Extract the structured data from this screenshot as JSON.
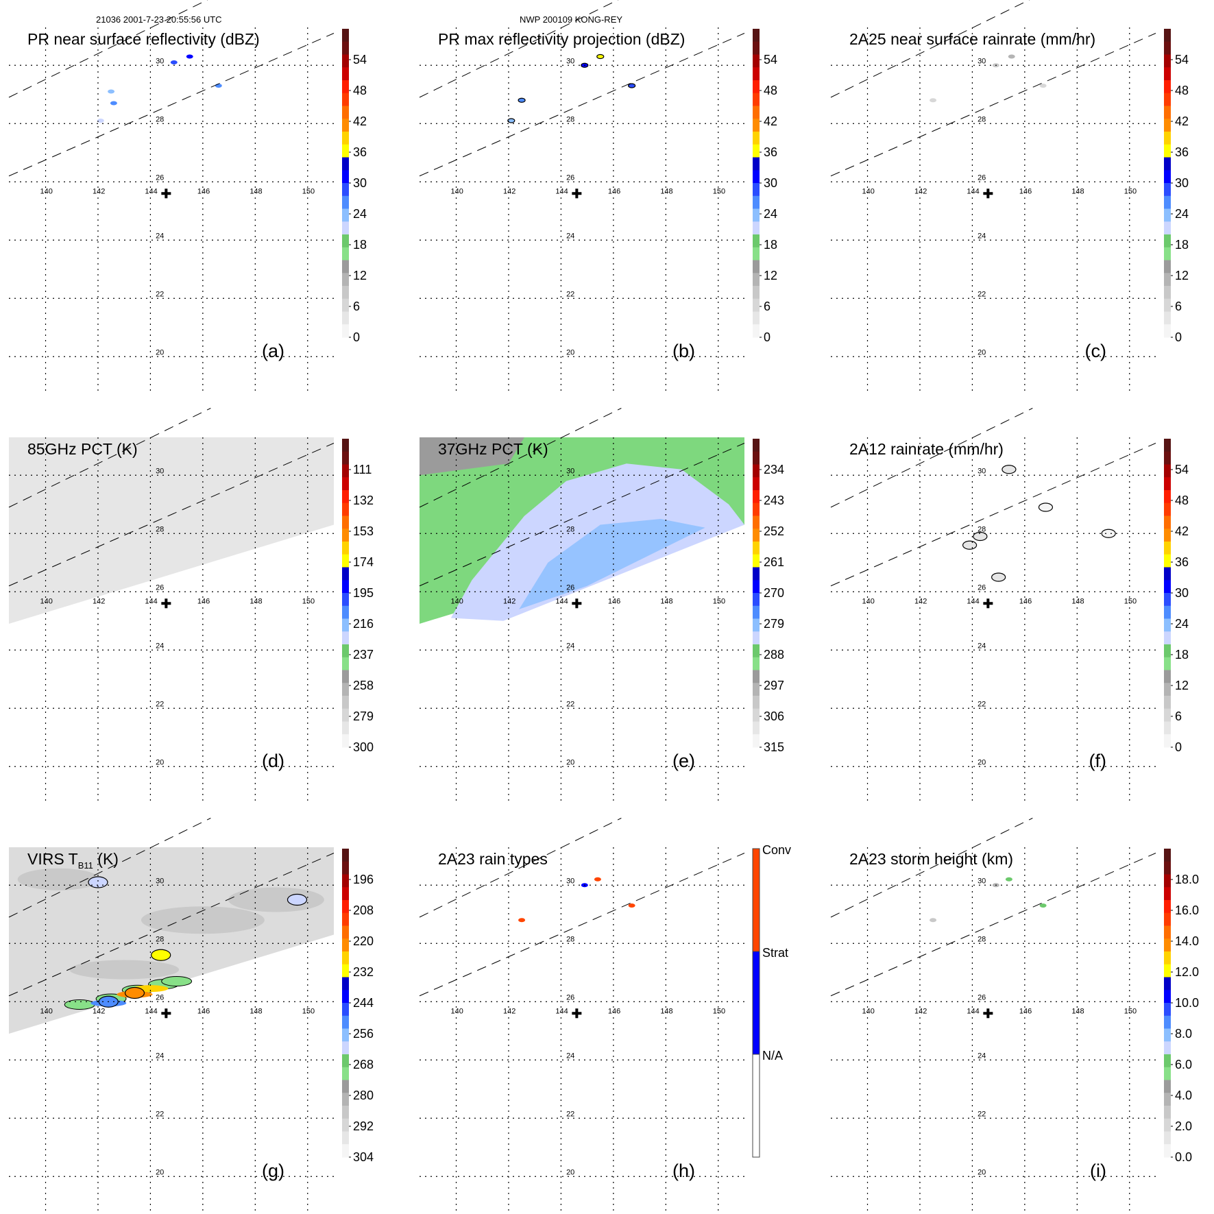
{
  "header": {
    "left": "21036 2001-7-23 20:55:56 UTC",
    "center": "NWP 200109 KONG-REY"
  },
  "map": {
    "lon_ticks": [
      "140",
      "142",
      "144",
      "146",
      "148",
      "150"
    ],
    "lat_ticks": [
      "30",
      "28",
      "26",
      "24",
      "22",
      "20"
    ],
    "lon_range": [
      138.6,
      151.0
    ],
    "lat_range": [
      19.3,
      31.3
    ],
    "storm_center": {
      "lon": 144.6,
      "lat": 25.6,
      "symbol": "+"
    }
  },
  "colors": {
    "scale": [
      "#f5f5f5",
      "#e6e6e6",
      "#d7d7d7",
      "#c8c8c8",
      "#b4b4b4",
      "#9b9b9b",
      "#88e088",
      "#6cc96c",
      "#ccd6ff",
      "#8cbfff",
      "#4d8cff",
      "#2b4dff",
      "#0000ff",
      "#0000c8",
      "#ffff00",
      "#ffd200",
      "#ff8c00",
      "#ff6e00",
      "#ff3c00",
      "#ff1e00",
      "#cc0000",
      "#a30000",
      "#6b1010",
      "#561414"
    ],
    "conv": "#ff4500",
    "strat": "#0000ff",
    "na": "#ffffff",
    "swath_grey": "#e4e4e4",
    "grid": "#000000"
  },
  "chart_data": [
    {
      "id": "a",
      "type": "heatmap",
      "title": "PR near surface reflectivity (dBZ)",
      "panel_label": "(a)",
      "colorbar": {
        "ticks": [
          "54",
          "48",
          "42",
          "36",
          "30",
          "24",
          "18",
          "12",
          "6",
          "0"
        ],
        "range": [
          0,
          60
        ],
        "unit": "dBZ"
      },
      "features": [
        {
          "lon": 144.9,
          "lat": 30.1,
          "value": 28
        },
        {
          "lon": 145.5,
          "lat": 30.3,
          "value": 32
        },
        {
          "lon": 146.6,
          "lat": 29.3,
          "value": 26
        },
        {
          "lon": 142.5,
          "lat": 29.1,
          "value": 24
        },
        {
          "lon": 142.6,
          "lat": 28.7,
          "value": 26
        },
        {
          "lon": 142.1,
          "lat": 28.1,
          "value": 22
        }
      ]
    },
    {
      "id": "b",
      "type": "heatmap",
      "title": "PR max reflectivity projection (dBZ)",
      "panel_label": "(b)",
      "colorbar": {
        "ticks": [
          "54",
          "48",
          "42",
          "36",
          "30",
          "24",
          "18",
          "12",
          "6",
          "0"
        ],
        "range": [
          0,
          60
        ],
        "unit": "dBZ"
      },
      "features": [
        {
          "lon": 144.9,
          "lat": 30.0,
          "value": 30
        },
        {
          "lon": 145.5,
          "lat": 30.3,
          "value": 36
        },
        {
          "lon": 146.7,
          "lat": 29.3,
          "value": 28
        },
        {
          "lon": 142.5,
          "lat": 28.8,
          "value": 26
        },
        {
          "lon": 142.1,
          "lat": 28.1,
          "value": 24
        }
      ]
    },
    {
      "id": "c",
      "type": "heatmap",
      "title": "2A25 near surface rainrate (mm/hr)",
      "panel_label": "(c)",
      "colorbar": {
        "ticks": [
          "54",
          "48",
          "42",
          "36",
          "30",
          "24",
          "18",
          "12",
          "6",
          "0"
        ],
        "range": [
          0,
          60
        ],
        "unit": "mm/hr"
      },
      "features": [
        {
          "lon": 144.9,
          "lat": 30.0,
          "value": 8
        },
        {
          "lon": 145.5,
          "lat": 30.3,
          "value": 12
        },
        {
          "lon": 146.7,
          "lat": 29.3,
          "value": 6
        },
        {
          "lon": 142.5,
          "lat": 28.8,
          "value": 5
        }
      ]
    },
    {
      "id": "d",
      "type": "heatmap",
      "title": "85GHz PCT (K)",
      "panel_label": "(d)",
      "colorbar": {
        "ticks": [
          "111",
          "132",
          "153",
          "174",
          "195",
          "216",
          "237",
          "258",
          "279",
          "300"
        ],
        "range": [
          300,
          90
        ],
        "unit": "K"
      },
      "swath_fill": "near-uniform ~285 K"
    },
    {
      "id": "e",
      "type": "heatmap",
      "title": "37GHz PCT (K)",
      "panel_label": "(e)",
      "colorbar": {
        "ticks": [
          "234",
          "243",
          "252",
          "261",
          "270",
          "279",
          "288",
          "297",
          "306",
          "315"
        ],
        "range": [
          315,
          225
        ],
        "unit": "K"
      },
      "swath_fill": "green ~288 K outer, light blue ~279 K central band"
    },
    {
      "id": "f",
      "type": "heatmap",
      "title": "2A12 rainrate (mm/hr)",
      "panel_label": "(f)",
      "colorbar": {
        "ticks": [
          "54",
          "48",
          "42",
          "36",
          "30",
          "24",
          "18",
          "12",
          "6",
          "0"
        ],
        "range": [
          0,
          60
        ],
        "unit": "mm/hr"
      },
      "features": [
        {
          "lon": 145.4,
          "lat": 30.2,
          "value": 3
        },
        {
          "lon": 144.3,
          "lat": 27.9,
          "value": 3
        },
        {
          "lon": 143.9,
          "lat": 27.6,
          "value": 3
        },
        {
          "lon": 145.0,
          "lat": 26.5,
          "value": 4
        },
        {
          "lon": 146.8,
          "lat": 28.9,
          "value": 2
        },
        {
          "lon": 149.2,
          "lat": 28.0,
          "value": 2
        }
      ]
    },
    {
      "id": "g",
      "type": "heatmap",
      "title": "VIRS T",
      "title_sub": "B11",
      "title_suffix": " (K)",
      "panel_label": "(g)",
      "colorbar": {
        "ticks": [
          "196",
          "208",
          "220",
          "232",
          "244",
          "256",
          "268",
          "280",
          "292",
          "304"
        ],
        "range": [
          304,
          184
        ],
        "unit": "K"
      },
      "features": [
        {
          "lon": 143.4,
          "lat": 26.3,
          "value": 220
        },
        {
          "lon": 142.4,
          "lat": 26.0,
          "value": 250
        },
        {
          "lon": 144.4,
          "lat": 27.6,
          "value": 230
        },
        {
          "lon": 142.0,
          "lat": 30.1,
          "value": 262
        },
        {
          "lon": 149.6,
          "lat": 29.5,
          "value": 262
        }
      ]
    },
    {
      "id": "h",
      "type": "heatmap",
      "title": "2A23 rain types",
      "panel_label": "(h)",
      "colorbar": {
        "categories": [
          "Conv",
          "Strat",
          "N/A"
        ]
      },
      "features": [
        {
          "lon": 142.5,
          "lat": 28.8,
          "category": "Conv"
        },
        {
          "lon": 144.9,
          "lat": 30.0,
          "category": "Strat"
        },
        {
          "lon": 145.4,
          "lat": 30.2,
          "category": "Conv"
        },
        {
          "lon": 146.7,
          "lat": 29.3,
          "category": "Conv"
        }
      ]
    },
    {
      "id": "i",
      "type": "heatmap",
      "title": "2A23 storm height (km)",
      "panel_label": "(i)",
      "colorbar": {
        "ticks": [
          "18.0",
          "16.0",
          "14.0",
          "12.0",
          "10.0",
          "8.0",
          "6.0",
          "4.0",
          "2.0",
          "0.0"
        ],
        "range": [
          0,
          20
        ],
        "unit": "km"
      },
      "features": [
        {
          "lon": 145.4,
          "lat": 30.2,
          "value": 6
        },
        {
          "lon": 144.9,
          "lat": 30.0,
          "value": 4
        },
        {
          "lon": 142.5,
          "lat": 28.8,
          "value": 3
        },
        {
          "lon": 146.7,
          "lat": 29.3,
          "value": 6
        }
      ]
    }
  ]
}
